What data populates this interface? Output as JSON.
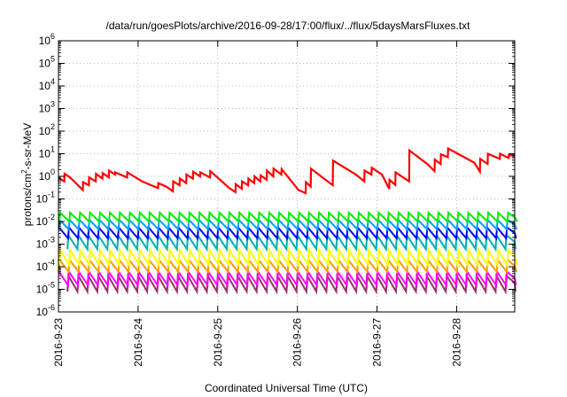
{
  "chart_data": {
    "type": "line",
    "title": "/data/run/goesPlots/archive/2016-09-28/17:00/flux/../flux/5daysMarsFluxes.txt",
    "xlabel": "Coordinated Universal Time (UTC)",
    "ylabel_parts": [
      "protons/cm",
      "2",
      "-s-sr-MeV"
    ],
    "y_scale": "log",
    "ylim_exp": [
      -6,
      6
    ],
    "y_ticks": [
      {
        "base": "10",
        "exp": "-6"
      },
      {
        "base": "10",
        "exp": "-5"
      },
      {
        "base": "10",
        "exp": "-4"
      },
      {
        "base": "10",
        "exp": "-3"
      },
      {
        "base": "10",
        "exp": "-2"
      },
      {
        "base": "10",
        "exp": "-1"
      },
      {
        "base": "10",
        "exp": "0"
      },
      {
        "base": "10",
        "exp": "1"
      },
      {
        "base": "10",
        "exp": "2"
      },
      {
        "base": "10",
        "exp": "3"
      },
      {
        "base": "10",
        "exp": "4"
      },
      {
        "base": "10",
        "exp": "5"
      },
      {
        "base": "10",
        "exp": "6"
      }
    ],
    "x_range": [
      "2016-09-23T00:00",
      "2016-09-28T17:30"
    ],
    "x_ticks": [
      "2016-9-23",
      "2016-9-24",
      "2016-9-25",
      "2016-9-26",
      "2016-9-27",
      "2016-9-28"
    ],
    "grid": true,
    "main_series": {
      "color": "#ff0000",
      "x": [
        "2016-09-23T00:00",
        "2016-09-23T01:45",
        "2016-09-23T01:50",
        "2016-09-23T03:30",
        "2016-09-23T07:20",
        "2016-09-23T07:25",
        "2016-09-23T09:10",
        "2016-09-23T09:15",
        "2016-09-23T11:15",
        "2016-09-23T11:20",
        "2016-09-23T13:15",
        "2016-09-23T13:20",
        "2016-09-23T15:10",
        "2016-09-23T15:15",
        "2016-09-23T17:00",
        "2016-09-23T17:05",
        "2016-09-23T20:40",
        "2016-09-23T20:45",
        "2016-09-24T01:10",
        "2016-09-24T04:00",
        "2016-09-24T06:00",
        "2016-09-24T06:05",
        "2016-09-24T08:30",
        "2016-09-24T10:30",
        "2016-09-24T10:35",
        "2016-09-24T12:30",
        "2016-09-24T12:35",
        "2016-09-24T14:30",
        "2016-09-24T14:35",
        "2016-09-24T16:30",
        "2016-09-24T16:35",
        "2016-09-24T18:40",
        "2016-09-24T18:45",
        "2016-09-24T21:40",
        "2016-09-24T21:45",
        "2016-09-25T03:30",
        "2016-09-25T05:20",
        "2016-09-25T05:25",
        "2016-09-25T07:15",
        "2016-09-25T07:20",
        "2016-09-25T09:10",
        "2016-09-25T09:15",
        "2016-09-25T11:00",
        "2016-09-25T11:05",
        "2016-09-25T12:50",
        "2016-09-25T12:55",
        "2016-09-25T14:45",
        "2016-09-25T14:50",
        "2016-09-25T16:45",
        "2016-09-25T16:50",
        "2016-09-25T19:10",
        "2016-09-25T19:15",
        "2016-09-26T00:20",
        "2016-09-26T02:30",
        "2016-09-26T02:35",
        "2016-09-26T04:00",
        "2016-09-26T04:05",
        "2016-09-26T10:40",
        "2016-09-26T10:45",
        "2016-09-26T17:40",
        "2016-09-26T20:10",
        "2016-09-26T20:15",
        "2016-09-26T22:20",
        "2016-09-26T22:25",
        "2016-09-27T01:30",
        "2016-09-27T03:40",
        "2016-09-27T03:45",
        "2016-09-27T05:30",
        "2016-09-27T05:35",
        "2016-09-27T09:40",
        "2016-09-27T09:45",
        "2016-09-27T15:10",
        "2016-09-27T17:20",
        "2016-09-27T17:25",
        "2016-09-27T19:10",
        "2016-09-27T19:15",
        "2016-09-27T21:20",
        "2016-09-27T21:25",
        "2016-09-28T05:20",
        "2016-09-28T07:00",
        "2016-09-28T07:05",
        "2016-09-28T09:20",
        "2016-09-28T09:25",
        "2016-09-28T13:00",
        "2016-09-28T13:05",
        "2016-09-28T15:40",
        "2016-09-28T15:45",
        "2016-09-28T17:30"
      ],
      "y": [
        0.85,
        0.6,
        1.3,
        0.9,
        0.25,
        0.55,
        0.4,
        0.9,
        0.6,
        1.3,
        0.8,
        1.4,
        0.9,
        1.8,
        1.2,
        1.5,
        0.9,
        1.5,
        0.6,
        0.4,
        0.3,
        0.5,
        0.35,
        0.22,
        0.6,
        0.4,
        0.8,
        0.5,
        1.2,
        0.8,
        1.6,
        1.0,
        1.5,
        0.9,
        1.7,
        0.3,
        0.2,
        0.45,
        0.28,
        0.6,
        0.4,
        0.8,
        0.5,
        1.0,
        0.6,
        1.1,
        0.7,
        1.8,
        1.0,
        2.2,
        1.2,
        2.1,
        0.25,
        0.18,
        0.55,
        0.35,
        2.2,
        0.4,
        5.0,
        1.2,
        0.6,
        1.8,
        1.2,
        2.4,
        1.2,
        0.28,
        0.7,
        0.42,
        1.5,
        0.6,
        14,
        3.5,
        1.7,
        5.5,
        3.5,
        9.5,
        7,
        17,
        4,
        1.6,
        6,
        3.5,
        10,
        6,
        10,
        6.5,
        9,
        8
      ]
    },
    "band_series": [
      {
        "color": "#00ee00",
        "low": 0.01,
        "high": 0.025
      },
      {
        "color": "#00a0ff",
        "low": 0.0045,
        "high": 0.012
      },
      {
        "color": "#0000ff",
        "low": 0.0018,
        "high": 0.0055
      },
      {
        "color": "#00b0b0",
        "low": 0.0006,
        "high": 0.0025
      },
      {
        "color": "#ffff00",
        "low": 0.00012,
        "high": 0.00055
      },
      {
        "color": "#ff9900",
        "low": 6e-05,
        "high": 0.0002
      },
      {
        "color": "#ff00ff",
        "low": 1.5e-05,
        "high": 6e-05
      },
      {
        "color": "#993366",
        "low": 8e-06,
        "high": 4e-05
      }
    ],
    "band_cycle_hours": 3
  }
}
